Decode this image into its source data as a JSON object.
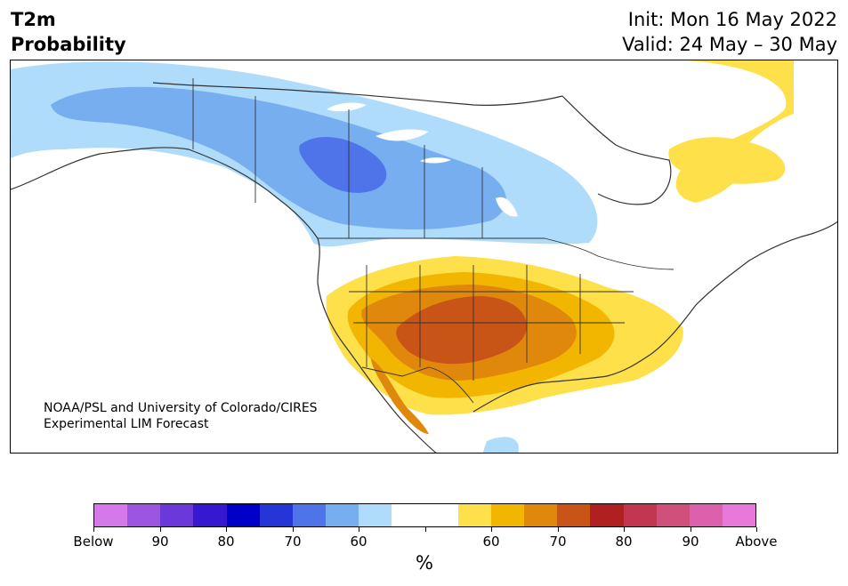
{
  "title": {
    "line1": "T2m",
    "line2": "Probability"
  },
  "init": {
    "line1": "Init: Mon 16 May 2022",
    "line2": "Valid: 24 May – 30 May"
  },
  "credit": {
    "line1": "NOAA/PSL and University of Colorado/CIRES",
    "line2": "Experimental LIM Forecast"
  },
  "colorbar": {
    "colors": [
      "#d478ea",
      "#9b55e0",
      "#6b38da",
      "#3518d0",
      "#0000c8",
      "#2535d6",
      "#4f73e8",
      "#76aef0",
      "#aedcfa",
      "#ffffff",
      "#ffffff",
      "#fde04a",
      "#f2b600",
      "#e0880c",
      "#c85418",
      "#b02020",
      "#c23652",
      "#d0507c",
      "#dd60ac",
      "#e878da"
    ],
    "tick_labels": [
      "Below",
      "90",
      "80",
      "70",
      "60",
      "",
      "60",
      "70",
      "80",
      "90",
      "Above"
    ],
    "unit": "%"
  },
  "map": {
    "colors": {
      "below60": "#aedcfa",
      "below70": "#76aef0",
      "below80": "#4f73e8",
      "above60": "#fde04a",
      "above70": "#f2b600",
      "above80": "#e0880c",
      "above90": "#c85418",
      "outline": "#333333"
    }
  }
}
